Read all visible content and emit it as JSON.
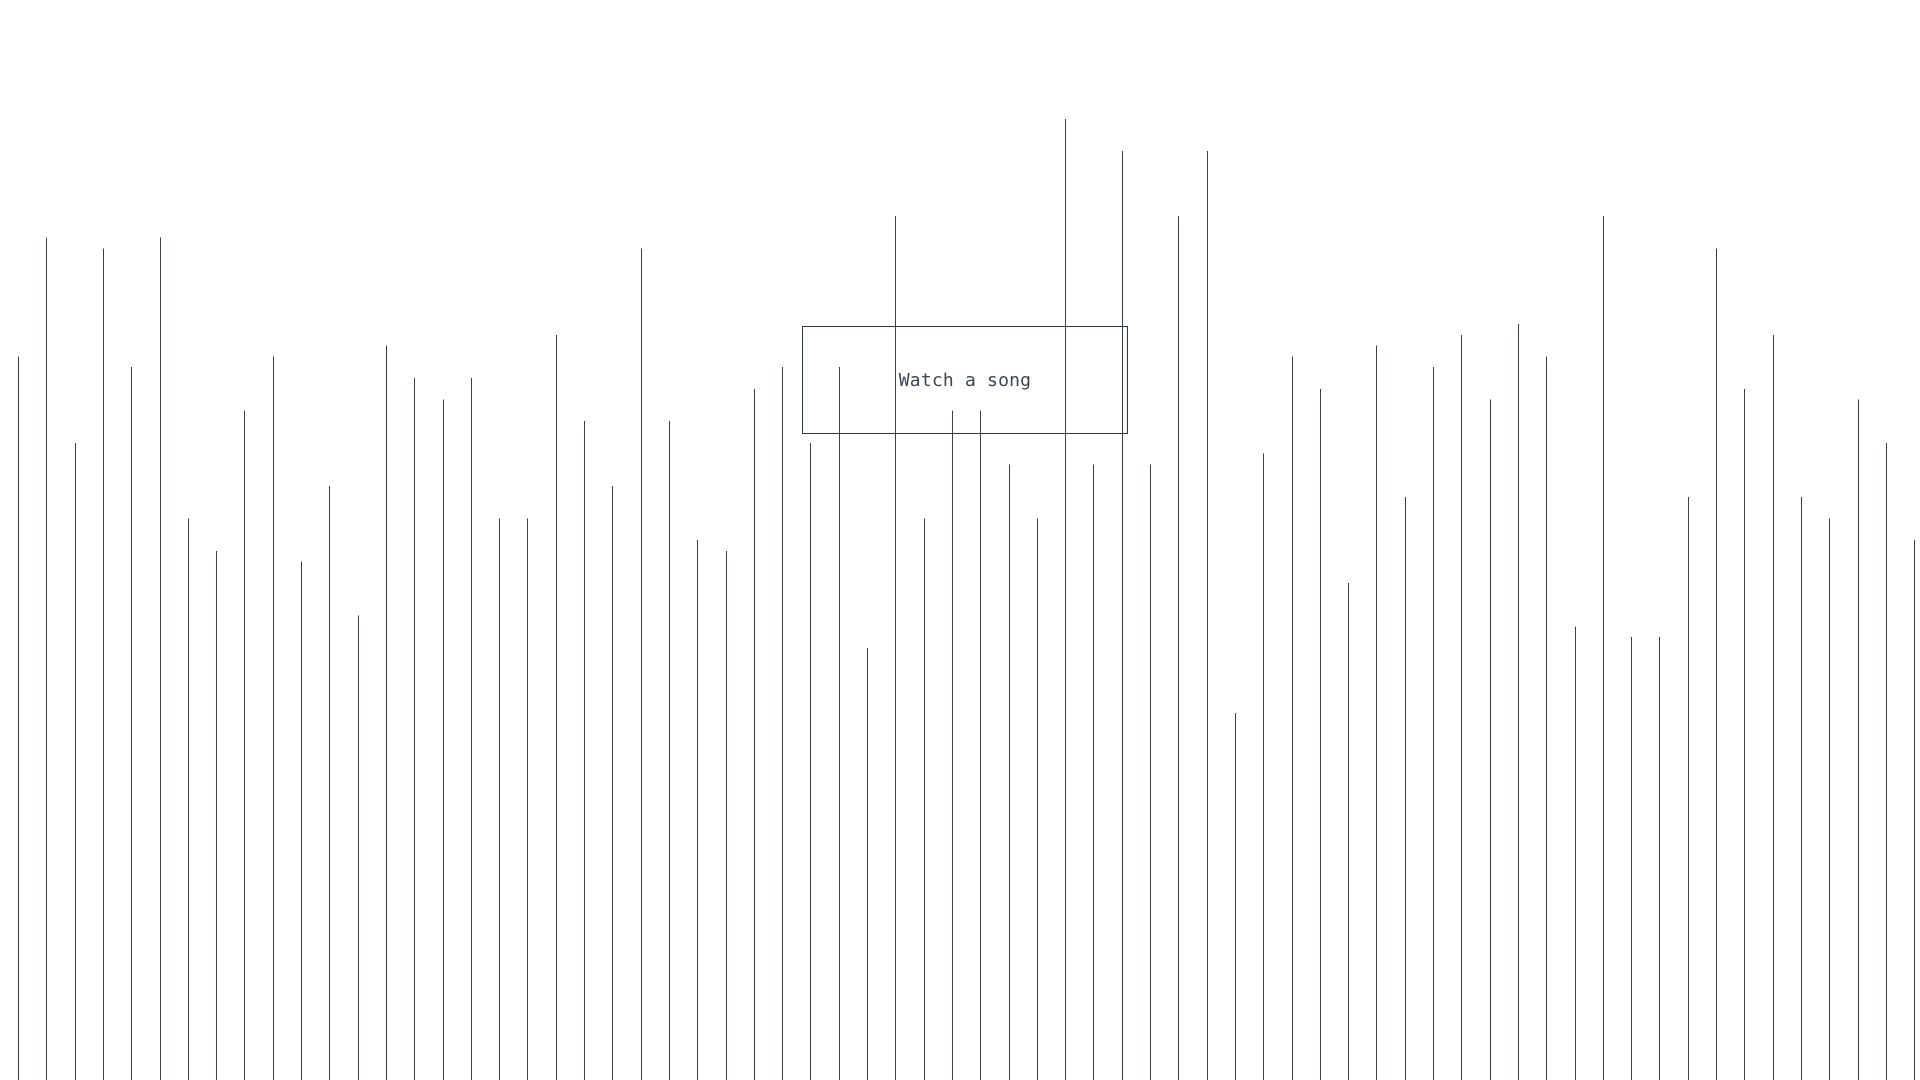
{
  "button": {
    "label": "Watch a song"
  },
  "colors": {
    "background": "#ffffff",
    "line": "#3a3f47",
    "text": "#3d4452",
    "border": "#2f3540"
  },
  "waveform": {
    "levels": [
      0.67,
      0.78,
      0.59,
      0.77,
      0.66,
      0.78,
      0.52,
      0.49,
      0.62,
      0.67,
      0.48,
      0.55,
      0.43,
      0.68,
      0.65,
      0.63,
      0.65,
      0.52,
      0.52,
      0.69,
      0.61,
      0.55,
      0.77,
      0.61,
      0.5,
      0.49,
      0.64,
      0.66,
      0.59,
      0.66,
      0.4,
      0.8,
      0.52,
      0.62,
      0.62,
      0.57,
      0.52,
      0.89,
      0.57,
      0.86,
      0.57,
      0.8,
      0.86,
      0.34,
      0.58,
      0.67,
      0.64,
      0.46,
      0.68,
      0.54,
      0.66,
      0.69,
      0.63,
      0.7,
      0.67,
      0.42,
      0.8,
      0.41,
      0.41,
      0.54,
      0.77,
      0.64,
      0.69,
      0.54,
      0.52,
      0.63,
      0.59,
      0.5
    ]
  }
}
